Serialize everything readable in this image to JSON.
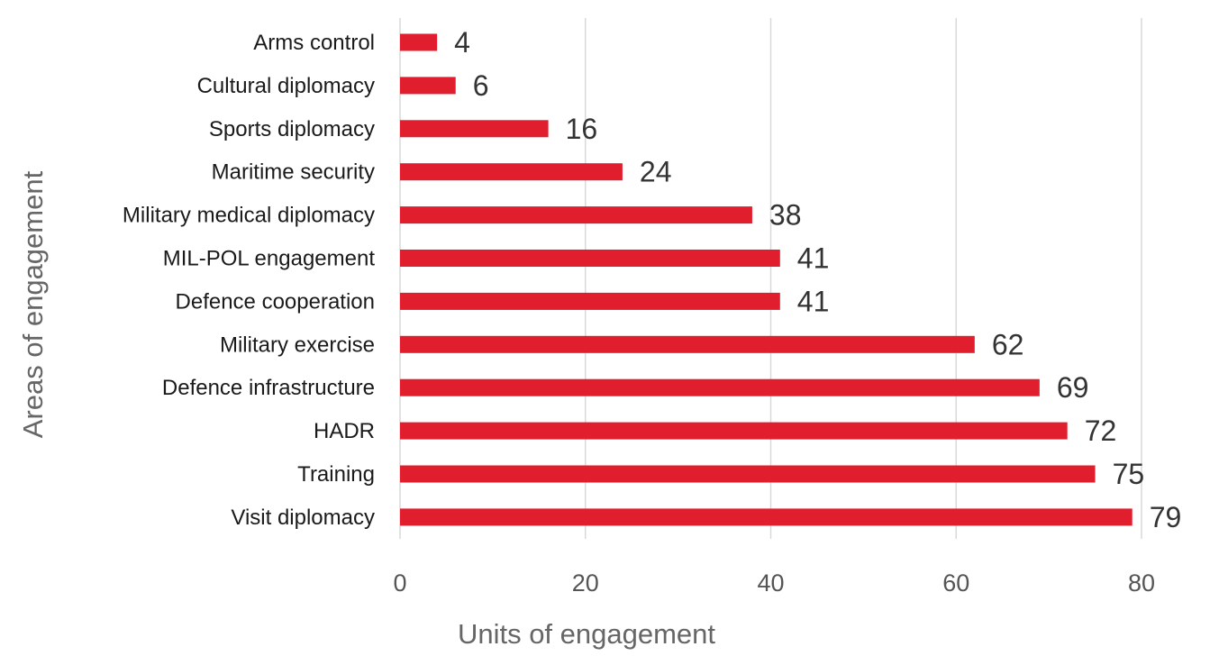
{
  "chart_data": {
    "type": "bar",
    "orientation": "horizontal",
    "categories": [
      "Arms control",
      "Cultural diplomacy",
      "Sports diplomacy",
      "Maritime security",
      "Military medical diplomacy",
      "MIL-POL engagement",
      "Defence cooperation",
      "Military exercise",
      "Defence infrastructure",
      "HADR",
      "Training",
      "Visit diplomacy"
    ],
    "values": [
      4,
      6,
      16,
      24,
      38,
      41,
      41,
      62,
      69,
      72,
      75,
      79
    ],
    "data_labels": [
      "4",
      "6",
      "16",
      "24",
      "38",
      "41",
      "41",
      "62",
      "69",
      "72",
      "75",
      "79"
    ],
    "xlabel": "Units of engagement",
    "ylabel": "Areas of engagement",
    "xlim": [
      0,
      80
    ],
    "xticks": [
      0,
      20,
      40,
      60,
      80
    ],
    "xtick_labels": [
      "0",
      "20",
      "40",
      "60",
      "80"
    ],
    "grid": "vertical",
    "legend": "none",
    "bar_color": "#e01e2d",
    "gridline_color": "#d9d9d9"
  }
}
